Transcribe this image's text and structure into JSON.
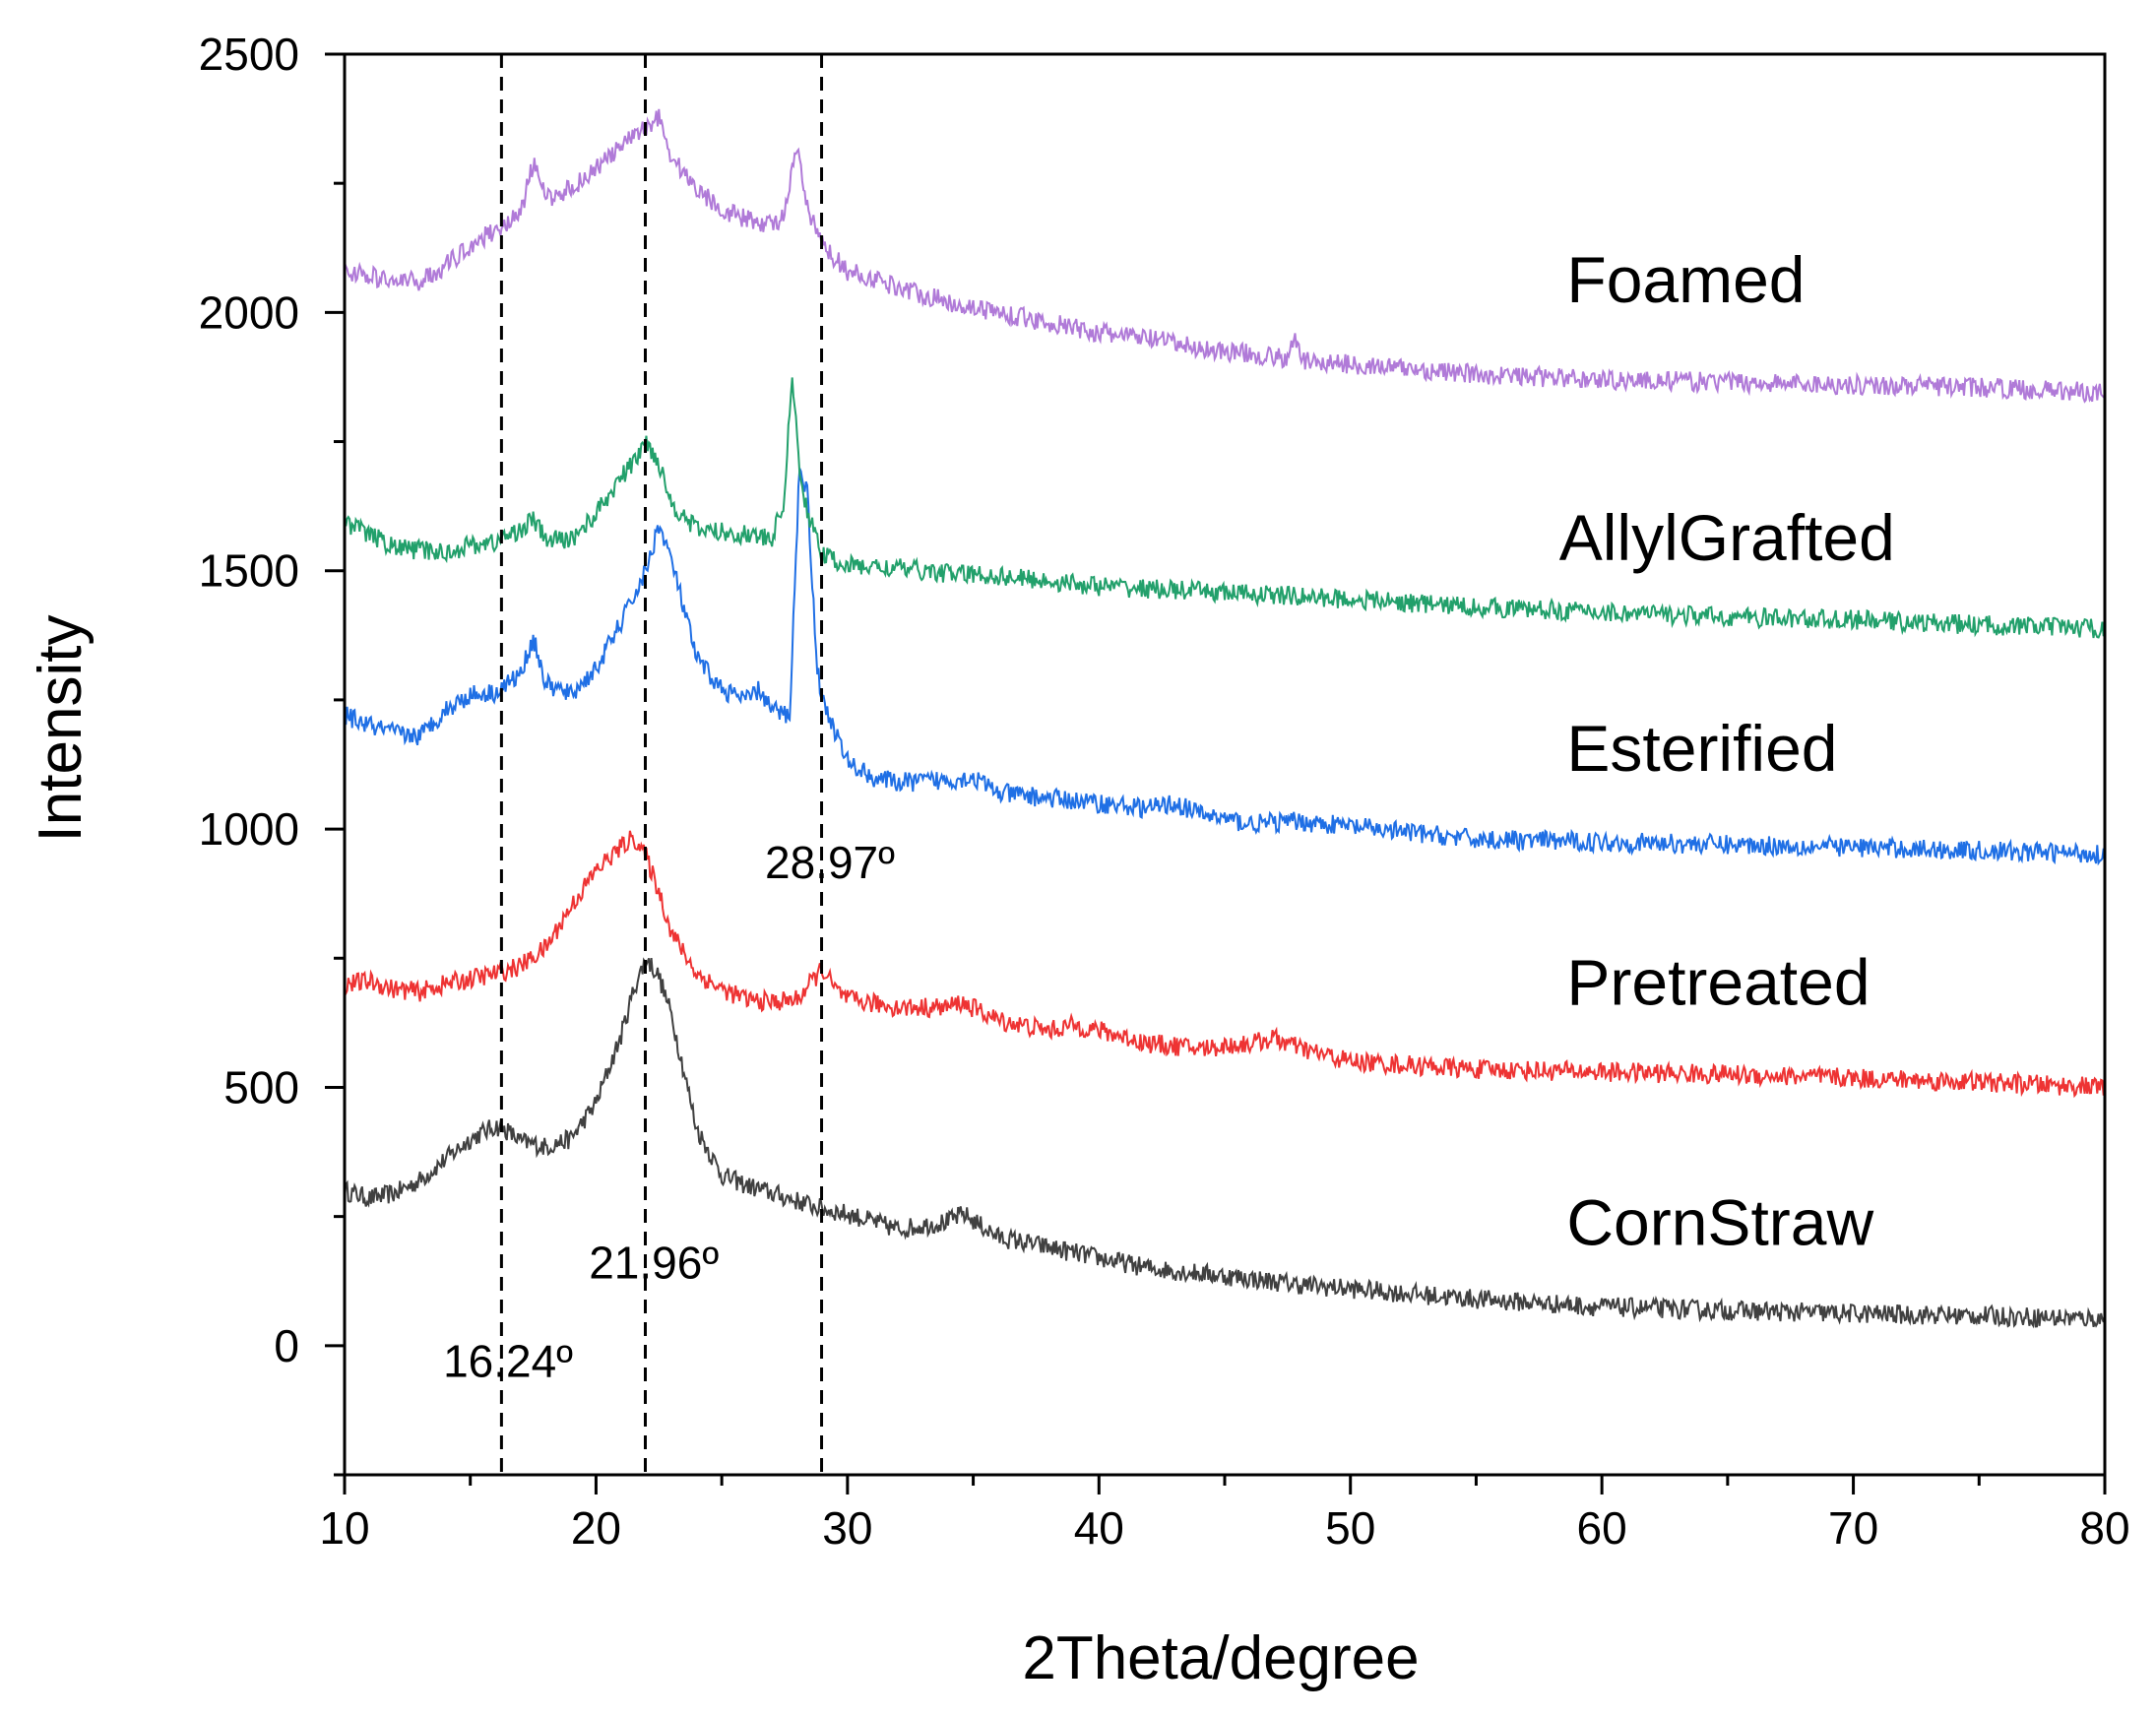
{
  "chart_data": {
    "type": "line",
    "title": "",
    "xlabel": "2Theta/degree",
    "ylabel": "Intensity",
    "xlim": [
      10,
      80
    ],
    "ylim": [
      -250,
      2500
    ],
    "x_ticks": [
      10,
      20,
      30,
      40,
      50,
      60,
      70,
      80
    ],
    "y_ticks": [
      0,
      500,
      1000,
      1500,
      2000,
      2500
    ],
    "grid": false,
    "legend": "labels placed at right end of each curve",
    "series": [
      {
        "name": "CornStraw",
        "color": "#404040",
        "label_anchor": [
          58.6,
          195
        ],
        "points": [
          [
            10,
            300
          ],
          [
            11,
            285
          ],
          [
            12,
            295
          ],
          [
            13,
            320
          ],
          [
            14,
            360
          ],
          [
            15,
            400
          ],
          [
            16,
            425
          ],
          [
            16.5,
            415
          ],
          [
            17,
            395
          ],
          [
            18,
            385
          ],
          [
            19,
            400
          ],
          [
            20,
            470
          ],
          [
            21,
            600
          ],
          [
            21.5,
            690
          ],
          [
            22,
            750
          ],
          [
            22.5,
            715
          ],
          [
            23,
            640
          ],
          [
            23.5,
            530
          ],
          [
            24,
            420
          ],
          [
            25,
            330
          ],
          [
            26,
            310
          ],
          [
            27,
            295
          ],
          [
            28,
            280
          ],
          [
            29,
            265
          ],
          [
            30,
            255
          ],
          [
            32,
            225
          ],
          [
            34,
            240
          ],
          [
            34.6,
            255
          ],
          [
            36,
            210
          ],
          [
            38,
            190
          ],
          [
            40,
            170
          ],
          [
            42,
            150
          ],
          [
            44,
            140
          ],
          [
            46,
            130
          ],
          [
            48,
            118
          ],
          [
            50,
            110
          ],
          [
            55,
            90
          ],
          [
            60,
            75
          ],
          [
            65,
            68
          ],
          [
            70,
            62
          ],
          [
            75,
            58
          ],
          [
            80,
            52
          ]
        ]
      },
      {
        "name": "Pretreated",
        "color": "#ee3333",
        "label_anchor": [
          58.6,
          660
        ],
        "points": [
          [
            10,
            700
          ],
          [
            11,
            705
          ],
          [
            12,
            690
          ],
          [
            13,
            685
          ],
          [
            14,
            700
          ],
          [
            15,
            710
          ],
          [
            16,
            720
          ],
          [
            17,
            735
          ],
          [
            18,
            770
          ],
          [
            19,
            850
          ],
          [
            20,
            920
          ],
          [
            21,
            965
          ],
          [
            21.5,
            985
          ],
          [
            22,
            945
          ],
          [
            22.5,
            880
          ],
          [
            23,
            800
          ],
          [
            24,
            720
          ],
          [
            25,
            690
          ],
          [
            26,
            670
          ],
          [
            27,
            665
          ],
          [
            28,
            670
          ],
          [
            29,
            730
          ],
          [
            29.5,
            690
          ],
          [
            30,
            670
          ],
          [
            32,
            655
          ],
          [
            34,
            655
          ],
          [
            34.5,
            665
          ],
          [
            36,
            630
          ],
          [
            38,
            610
          ],
          [
            39,
            620
          ],
          [
            40,
            610
          ],
          [
            42,
            585
          ],
          [
            44,
            575
          ],
          [
            46,
            585
          ],
          [
            47,
            595
          ],
          [
            48,
            575
          ],
          [
            50,
            550
          ],
          [
            55,
            535
          ],
          [
            60,
            530
          ],
          [
            65,
            525
          ],
          [
            70,
            518
          ],
          [
            75,
            510
          ],
          [
            80,
            500
          ]
        ]
      },
      {
        "name": "Esterified",
        "color": "#1f6fe5",
        "label_anchor": [
          58.6,
          1113
        ],
        "points": [
          [
            10,
            1220
          ],
          [
            11,
            1200
          ],
          [
            12,
            1185
          ],
          [
            13,
            1180
          ],
          [
            14,
            1230
          ],
          [
            15,
            1260
          ],
          [
            16,
            1265
          ],
          [
            17,
            1300
          ],
          [
            17.5,
            1370
          ],
          [
            18,
            1280
          ],
          [
            19,
            1260
          ],
          [
            20,
            1310
          ],
          [
            21,
            1400
          ],
          [
            22,
            1500
          ],
          [
            22.5,
            1590
          ],
          [
            23,
            1520
          ],
          [
            24,
            1330
          ],
          [
            25,
            1270
          ],
          [
            26,
            1250
          ],
          [
            26.5,
            1270
          ],
          [
            27,
            1230
          ],
          [
            27.7,
            1220
          ],
          [
            28.1,
            1710
          ],
          [
            28.4,
            1650
          ],
          [
            28.8,
            1310
          ],
          [
            29,
            1250
          ],
          [
            30,
            1130
          ],
          [
            31,
            1100
          ],
          [
            32,
            1090
          ],
          [
            34,
            1095
          ],
          [
            35,
            1100
          ],
          [
            36,
            1070
          ],
          [
            38,
            1060
          ],
          [
            40,
            1050
          ],
          [
            42,
            1040
          ],
          [
            43,
            1050
          ],
          [
            44,
            1030
          ],
          [
            46,
            1010
          ],
          [
            48,
            1015
          ],
          [
            50,
            1005
          ],
          [
            55,
            980
          ],
          [
            60,
            975
          ],
          [
            65,
            970
          ],
          [
            70,
            965
          ],
          [
            75,
            958
          ],
          [
            80,
            952
          ]
        ]
      },
      {
        "name": "AllylGrafted",
        "color": "#22a06b",
        "label_anchor": [
          58.3,
          1520
        ],
        "points": [
          [
            10,
            1595
          ],
          [
            11,
            1570
          ],
          [
            12,
            1545
          ],
          [
            13,
            1540
          ],
          [
            14,
            1535
          ],
          [
            15,
            1550
          ],
          [
            16,
            1555
          ],
          [
            17,
            1580
          ],
          [
            17.5,
            1600
          ],
          [
            18,
            1560
          ],
          [
            19,
            1560
          ],
          [
            20,
            1610
          ],
          [
            21,
            1680
          ],
          [
            21.5,
            1710
          ],
          [
            22,
            1750
          ],
          [
            22.5,
            1710
          ],
          [
            23,
            1630
          ],
          [
            24,
            1580
          ],
          [
            25,
            1575
          ],
          [
            26,
            1570
          ],
          [
            27,
            1560
          ],
          [
            27.5,
            1640
          ],
          [
            27.8,
            1890
          ],
          [
            28.1,
            1680
          ],
          [
            28.5,
            1600
          ],
          [
            29,
            1530
          ],
          [
            30,
            1510
          ],
          [
            32,
            1505
          ],
          [
            34,
            1495
          ],
          [
            36,
            1490
          ],
          [
            38,
            1480
          ],
          [
            40,
            1470
          ],
          [
            42,
            1465
          ],
          [
            44,
            1460
          ],
          [
            46,
            1455
          ],
          [
            48,
            1450
          ],
          [
            50,
            1445
          ],
          [
            55,
            1430
          ],
          [
            60,
            1420
          ],
          [
            65,
            1410
          ],
          [
            70,
            1405
          ],
          [
            75,
            1395
          ],
          [
            80,
            1388
          ]
        ]
      },
      {
        "name": "Foamed",
        "color": "#b07ad8",
        "label_anchor": [
          58.6,
          2020
        ],
        "points": [
          [
            10,
            2080
          ],
          [
            11,
            2070
          ],
          [
            12,
            2060
          ],
          [
            13,
            2060
          ],
          [
            14,
            2090
          ],
          [
            15,
            2130
          ],
          [
            16,
            2160
          ],
          [
            17,
            2190
          ],
          [
            17.5,
            2290
          ],
          [
            18,
            2220
          ],
          [
            19,
            2240
          ],
          [
            20,
            2280
          ],
          [
            21,
            2320
          ],
          [
            22,
            2360
          ],
          [
            22.5,
            2380
          ],
          [
            23,
            2300
          ],
          [
            24,
            2240
          ],
          [
            25,
            2200
          ],
          [
            26,
            2180
          ],
          [
            27,
            2170
          ],
          [
            27.5,
            2190
          ],
          [
            28,
            2320
          ],
          [
            28.4,
            2200
          ],
          [
            29,
            2130
          ],
          [
            30,
            2080
          ],
          [
            32,
            2050
          ],
          [
            34,
            2020
          ],
          [
            36,
            2000
          ],
          [
            38,
            1980
          ],
          [
            40,
            1960
          ],
          [
            42,
            1950
          ],
          [
            44,
            1930
          ],
          [
            46,
            1920
          ],
          [
            47.5,
            1910
          ],
          [
            47.8,
            1945
          ],
          [
            48.2,
            1905
          ],
          [
            50,
            1900
          ],
          [
            55,
            1880
          ],
          [
            60,
            1870
          ],
          [
            65,
            1865
          ],
          [
            70,
            1860
          ],
          [
            75,
            1855
          ],
          [
            80,
            1845
          ]
        ]
      }
    ],
    "reference_lines": [
      {
        "x": 16.24,
        "label": "16.24º",
        "label_pos": [
          16.5,
          -60
        ]
      },
      {
        "x": 21.96,
        "label": "21.96º",
        "label_pos": [
          22.3,
          130
        ]
      },
      {
        "x": 28.97,
        "label": "28.97º",
        "label_pos": [
          29.3,
          905
        ]
      }
    ]
  }
}
